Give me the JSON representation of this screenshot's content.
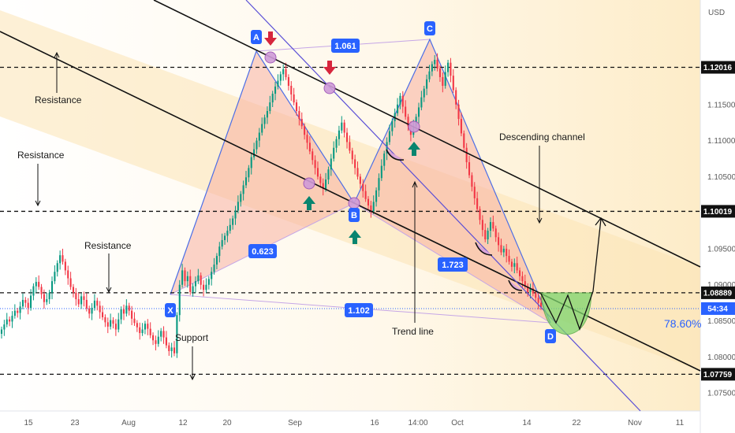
{
  "chart_data": {
    "type": "candlestick",
    "currency": "USD",
    "x_tick_labels": [
      "15",
      "23",
      "Aug",
      "12",
      "20",
      "Sep",
      "16",
      "14:00",
      "Oct",
      "14",
      "22",
      "Nov",
      "11"
    ],
    "y_ticks": [
      1.075,
      1.08,
      1.085,
      1.09,
      1.095,
      1.1,
      1.105,
      1.11,
      1.115,
      1.12
    ],
    "y_tick_labels": [
      "1.07500",
      "1.08000",
      "1.08500",
      "1.09000",
      "1.09500",
      "1.10000",
      "1.10500",
      "1.11000",
      "1.11500",
      "1.12000"
    ],
    "ylim": [
      1.0725,
      1.1295
    ],
    "horizontal_levels": [
      {
        "value": 1.12016,
        "label": "1.12016"
      },
      {
        "value": 1.10019,
        "label": "1.10019"
      },
      {
        "value": 1.08889,
        "label": "1.08889"
      },
      {
        "value": 1.07759,
        "label": "1.07759"
      }
    ],
    "current_price": {
      "value": 1.0867,
      "label": "54:34"
    },
    "pattern_points": [
      {
        "name": "X",
        "price": 1.0885
      },
      {
        "name": "A",
        "price": 1.1201
      },
      {
        "name": "B",
        "price": 1.1
      },
      {
        "name": "C",
        "price": 1.1212
      },
      {
        "name": "D",
        "price": 1.0845
      }
    ],
    "ratios": [
      "0.623",
      "1.061",
      "1.723",
      "1.102"
    ],
    "percent_label": "78.60%",
    "annotations": [
      "Resistance",
      "Resistance",
      "Resistance",
      "Support",
      "Descending channel",
      "Trend line"
    ],
    "candles_close": [
      1.0838,
      1.0845,
      1.0852,
      1.0849,
      1.0857,
      1.0864,
      1.0861,
      1.087,
      1.0879,
      1.0875,
      1.0868,
      1.0885,
      1.0898,
      1.0904,
      1.0897,
      1.0887,
      1.0876,
      1.088,
      1.0889,
      1.0905,
      1.0918,
      1.093,
      1.0941,
      1.0932,
      1.092,
      1.0909,
      1.0897,
      1.0889,
      1.088,
      1.0873,
      1.0884,
      1.0879,
      1.0867,
      1.086,
      1.0868,
      1.0878,
      1.0871,
      1.0862,
      1.0855,
      1.0848,
      1.0842,
      1.0851,
      1.0846,
      1.0838,
      1.0852,
      1.0866,
      1.086,
      1.0871,
      1.0864,
      1.0853,
      1.0847,
      1.0841,
      1.0833,
      1.0838,
      1.0846,
      1.0839,
      1.083,
      1.0823,
      1.0818,
      1.0828,
      1.0836,
      1.0827,
      1.0816,
      1.0808,
      1.0813,
      1.0805,
      1.0858,
      1.09,
      1.092,
      1.0905,
      1.0912,
      1.089,
      1.0898,
      1.0905,
      1.0913,
      1.09,
      1.0893,
      1.09,
      1.0908,
      1.0918,
      1.0928,
      1.094,
      1.0953,
      1.0962,
      1.0968,
      1.0975,
      1.0983,
      1.0992,
      1.1003,
      1.1015,
      1.1026,
      1.1038,
      1.1049,
      1.1062,
      1.1077,
      1.1088,
      1.11,
      1.1111,
      1.1123,
      1.1132,
      1.1141,
      1.1153,
      1.1165,
      1.1175,
      1.1183,
      1.1192,
      1.1199,
      1.1188,
      1.1176,
      1.1164,
      1.1153,
      1.1141,
      1.113,
      1.112,
      1.1108,
      1.1097,
      1.1085,
      1.1073,
      1.1062,
      1.105,
      1.1041,
      1.1033,
      1.1046,
      1.106,
      1.1075,
      1.109,
      1.1102,
      1.1114,
      1.1125,
      1.1111,
      1.1098,
      1.1086,
      1.1074,
      1.1062,
      1.105,
      1.104,
      1.103,
      1.1019,
      1.101,
      1.1002,
      1.1015,
      1.1031,
      1.1048,
      1.1065,
      1.1082,
      1.1098,
      1.1113,
      1.1127,
      1.1138,
      1.115,
      1.1162,
      1.1147,
      1.1133,
      1.112,
      1.1108,
      1.112,
      1.1133,
      1.1146,
      1.116,
      1.1172,
      1.1185,
      1.1196,
      1.1206,
      1.1212,
      1.12,
      1.1188,
      1.1176,
      1.1195,
      1.1208,
      1.119,
      1.117,
      1.115,
      1.113,
      1.111,
      1.109,
      1.107,
      1.1052,
      1.1036,
      1.102,
      1.1005,
      1.099,
      1.0976,
      1.0963,
      1.0975,
      1.0987,
      1.0978,
      1.0966,
      1.0955,
      1.0945,
      1.095,
      1.094,
      1.0932,
      1.0925,
      1.093,
      1.092,
      1.0912,
      1.0905,
      1.0898,
      1.089,
      1.0895,
      1.0888,
      1.0882,
      1.0875,
      1.0869
    ]
  },
  "colors": {
    "up": "#089981",
    "down": "#f23645",
    "accent_blue": "#2962ff",
    "channel_fill": "#fdebc4",
    "triangle_fill": "#f7b9a8",
    "cup_fill": "#7fd36b",
    "trend_line": "#5b4fd6",
    "circle_fill": "#c79ad6"
  }
}
